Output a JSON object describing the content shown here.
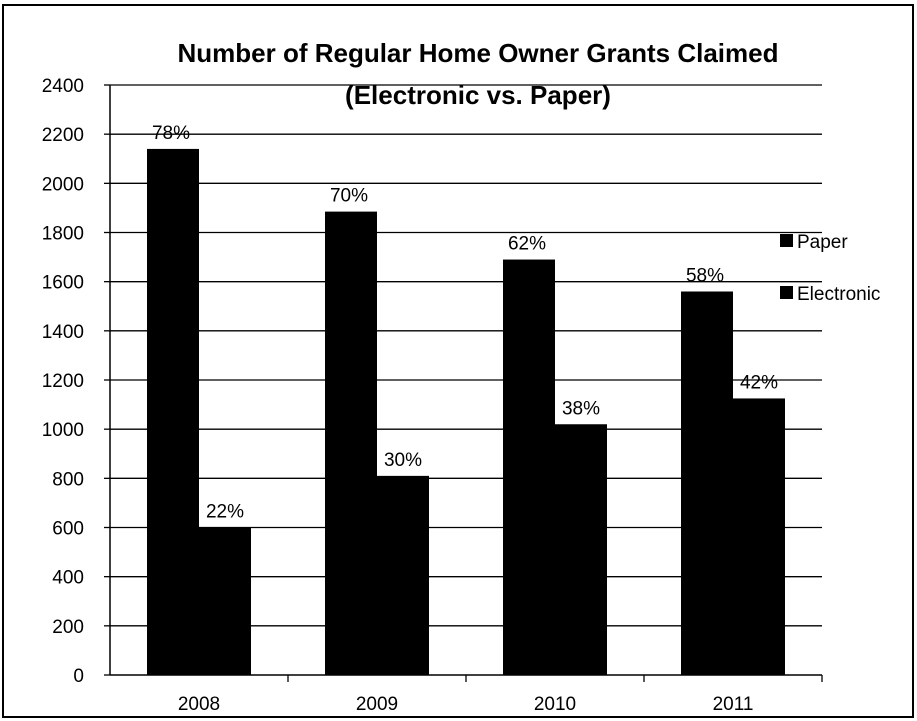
{
  "chart_data": {
    "type": "bar",
    "title": "Number of Regular Home Owner Grants Claimed",
    "subtitle": "(Electronic vs. Paper)",
    "categories": [
      "2008",
      "2009",
      "2010",
      "2011"
    ],
    "series": [
      {
        "name": "Paper",
        "values": [
          2140,
          1885,
          1690,
          1560
        ],
        "labels": [
          "78%",
          "70%",
          "62%",
          "58%"
        ],
        "color": "#000000"
      },
      {
        "name": "Electronic",
        "values": [
          600,
          810,
          1020,
          1125
        ],
        "labels": [
          "22%",
          "30%",
          "38%",
          "42%"
        ],
        "color": "#000000"
      }
    ],
    "ylim": [
      0,
      2400
    ],
    "yticks": [
      0,
      200,
      400,
      600,
      800,
      1000,
      1200,
      1400,
      1600,
      1800,
      2000,
      2200,
      2400
    ],
    "grid": true,
    "legend": "right",
    "xlabel": "",
    "ylabel": ""
  }
}
